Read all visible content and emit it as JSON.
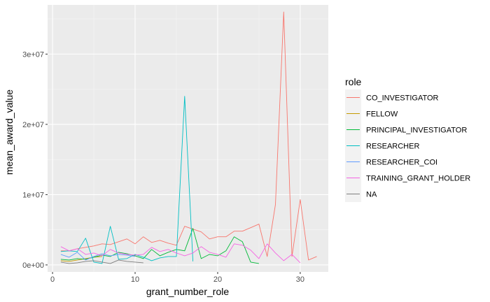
{
  "chart_data": {
    "type": "line",
    "title": "",
    "xlabel": "grant_number_role",
    "ylabel": "mean_award_value",
    "xlim": [
      -0.6,
      33.4
    ],
    "ylim": [
      -1000000,
      37000000
    ],
    "x_ticks": [
      0,
      10,
      20,
      30
    ],
    "x_tick_labels": [
      "0",
      "10",
      "20",
      "30"
    ],
    "y_ticks": [
      0,
      10000000,
      20000000,
      30000000
    ],
    "y_tick_labels": [
      "0e+00",
      "1e+07",
      "2e+07",
      "3e+07"
    ],
    "grid": true,
    "legend_title": "role",
    "legend_position": "right",
    "series": [
      {
        "name": "CO_INVESTIGATOR",
        "color": "#F8766D",
        "x": [
          1,
          2,
          3,
          4,
          5,
          6,
          7,
          8,
          9,
          10,
          11,
          12,
          13,
          14,
          15,
          16,
          17,
          18,
          19,
          20,
          21,
          22,
          23,
          24,
          25,
          26,
          27,
          28,
          29,
          30,
          31,
          32
        ],
        "y": [
          2000000,
          2000000,
          2300000,
          2500000,
          2700000,
          3000000,
          2900000,
          3300000,
          3700000,
          3000000,
          4000000,
          3200000,
          3500000,
          3100000,
          2800000,
          5500000,
          5100000,
          4700000,
          3700000,
          4000000,
          4000000,
          4800000,
          4800000,
          5300000,
          5800000,
          1200000,
          8600000,
          36000000,
          1200000,
          9300000,
          700000,
          1200000
        ]
      },
      {
        "name": "FELLOW",
        "color": "#C49A00",
        "x": [
          1,
          2,
          3,
          4,
          5,
          6
        ],
        "y": [
          600000,
          500000,
          700000,
          900000,
          1100000,
          1200000
        ]
      },
      {
        "name": "PRINCIPAL_INVESTIGATOR",
        "color": "#00BA38",
        "x": [
          1,
          2,
          3,
          4,
          5,
          6,
          7,
          8,
          9,
          10,
          11,
          12,
          13,
          14,
          15,
          16,
          17,
          18,
          19,
          20,
          21,
          22,
          23,
          24,
          25
        ],
        "y": [
          800000,
          700000,
          900000,
          800000,
          1100000,
          1400000,
          1200000,
          1800000,
          1600000,
          1300000,
          900000,
          2200000,
          1300000,
          1800000,
          2200000,
          2000000,
          5200000,
          900000,
          1500000,
          1300000,
          2000000,
          4000000,
          3300000,
          400000,
          200000
        ]
      },
      {
        "name": "RESEARCHER",
        "color": "#00BFC4",
        "x": [
          1,
          2,
          3,
          4,
          5,
          6,
          7,
          8,
          9,
          10,
          11,
          12,
          13,
          14,
          15,
          16,
          17
        ],
        "y": [
          1900000,
          2000000,
          1900000,
          3800000,
          400000,
          200000,
          5500000,
          800000,
          900000,
          1500000,
          1100000,
          600000,
          1000000,
          1200000,
          1200000,
          24000000,
          500000
        ]
      },
      {
        "name": "RESEARCHER_COI",
        "color": "#619CFF",
        "x": [
          1,
          2,
          3,
          4,
          5,
          6,
          7,
          8,
          9,
          10
        ],
        "y": [
          1500000,
          1100000,
          1800000,
          700000,
          1200000,
          1600000,
          1300000,
          1500000,
          1400000,
          1200000
        ]
      },
      {
        "name": "TRAINING_GRANT_HOLDER",
        "color": "#F564E3",
        "x": [
          1,
          2,
          3,
          4,
          5,
          6,
          7,
          8,
          9,
          10,
          11,
          12,
          13,
          14,
          15,
          16,
          17,
          18,
          19,
          20,
          21,
          22,
          23,
          24,
          25,
          26,
          27,
          28,
          29,
          30
        ],
        "y": [
          2600000,
          2000000,
          2300000,
          1500000,
          1700000,
          1300000,
          2200000,
          1700000,
          1500000,
          1400000,
          1500000,
          2500000,
          1900000,
          2200000,
          1700000,
          1300000,
          1700000,
          2600000,
          1800000,
          1500000,
          1100000,
          3000000,
          2800000,
          2100000,
          900000,
          3000000,
          1700000,
          600000,
          1500000,
          300000
        ]
      },
      {
        "name": "NA",
        "color": "#7F7F7F",
        "x": [
          1,
          2,
          3,
          4,
          5,
          6,
          7,
          8,
          9,
          10,
          11
        ],
        "y": [
          400000,
          200000,
          300000,
          500000,
          600000,
          400000,
          200000,
          700000,
          500000,
          400000,
          300000
        ]
      }
    ]
  }
}
